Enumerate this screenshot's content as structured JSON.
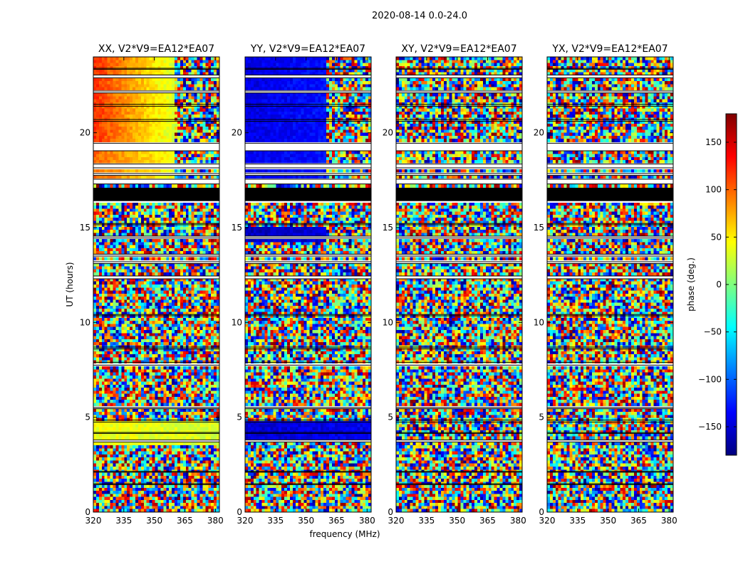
{
  "figure_title": "2020-08-14 0.0-24.0",
  "ylabel": "UT (hours)",
  "xlabel": "frequency (MHz)",
  "colorbar": {
    "label": "phase (deg.)",
    "range": [
      -180,
      180
    ],
    "ticks": [
      -150,
      -100,
      -50,
      0,
      50,
      100,
      150
    ],
    "tick_labels": [
      "−150",
      "−100",
      "−50",
      "0",
      "50",
      "100",
      "150"
    ],
    "colormap": "jet",
    "colors": [
      "#00007f",
      "#0000ff",
      "#007fff",
      "#00ffff",
      "#7fff7f",
      "#ffff00",
      "#ff7f00",
      "#ff0000",
      "#7f0000"
    ]
  },
  "chart_data": {
    "type": "heatmap",
    "title": "2020-08-14 0.0-24.0",
    "xlabel": "frequency (MHz)",
    "ylabel": "UT (hours)",
    "xlim": [
      320,
      382
    ],
    "ylim": [
      0,
      24
    ],
    "xticks": [
      320,
      335,
      350,
      365,
      380
    ],
    "yticks": [
      0,
      5,
      10,
      15,
      20
    ],
    "value_label": "phase (deg.)",
    "value_range": [
      -180,
      180
    ],
    "panels": [
      {
        "title": "XX, V2*V9=EA12*EA07",
        "pol": "XX",
        "coherent_segments": [
          {
            "t_start": 19.5,
            "t_end": 24.0,
            "f_start": 320,
            "f_end": 360,
            "phase_start": 120,
            "phase_end": 30
          },
          {
            "t_start": 17.5,
            "t_end": 19.5,
            "f_start": 320,
            "f_end": 360,
            "phase_start": 100,
            "phase_end": 40
          },
          {
            "t_start": 3.5,
            "t_end": 4.8,
            "f_start": 320,
            "f_end": 382,
            "phase_start": 40,
            "phase_end": 30
          }
        ]
      },
      {
        "title": "YY, V2*V9=EA12*EA07",
        "pol": "YY",
        "coherent_segments": [
          {
            "t_start": 19.5,
            "t_end": 24.0,
            "f_start": 320,
            "f_end": 360,
            "phase_start": -145,
            "phase_end": -130
          },
          {
            "t_start": 17.5,
            "t_end": 19.5,
            "f_start": 320,
            "f_end": 360,
            "phase_start": -140,
            "phase_end": -130
          },
          {
            "t_start": 14.3,
            "t_end": 15.0,
            "f_start": 320,
            "f_end": 360,
            "phase_start": -160,
            "phase_end": -150
          },
          {
            "t_start": 3.8,
            "t_end": 4.8,
            "f_start": 320,
            "f_end": 382,
            "phase_start": -150,
            "phase_end": -140
          }
        ]
      },
      {
        "title": "XY, V2*V9=EA12*EA07",
        "pol": "XY",
        "coherent_segments": []
      },
      {
        "title": "YX, V2*V9=EA12*EA07",
        "pol": "YX",
        "coherent_segments": []
      }
    ],
    "flagged_time_ranges": [
      [
        23.35,
        23.4
      ],
      [
        22.9,
        23.05
      ],
      [
        22.1,
        22.2
      ],
      [
        21.4,
        21.5
      ],
      [
        20.6,
        20.7
      ],
      [
        19.05,
        19.45
      ],
      [
        18.15,
        18.35
      ],
      [
        17.75,
        17.85
      ],
      [
        17.3,
        17.55
      ],
      [
        15.15,
        15.22
      ],
      [
        14.45,
        14.55
      ],
      [
        13.5,
        13.6
      ],
      [
        13.1,
        13.2
      ],
      [
        12.3,
        12.45
      ],
      [
        10.35,
        10.42
      ],
      [
        8.6,
        8.7
      ],
      [
        7.75,
        7.9
      ],
      [
        5.45,
        5.52
      ],
      [
        4.75,
        4.85
      ],
      [
        4.15,
        4.2
      ],
      [
        3.7,
        3.8
      ],
      [
        2.1,
        2.15
      ],
      [
        1.45,
        1.5
      ]
    ],
    "blanked_time_ranges": [
      [
        16.4,
        17.1
      ]
    ]
  }
}
